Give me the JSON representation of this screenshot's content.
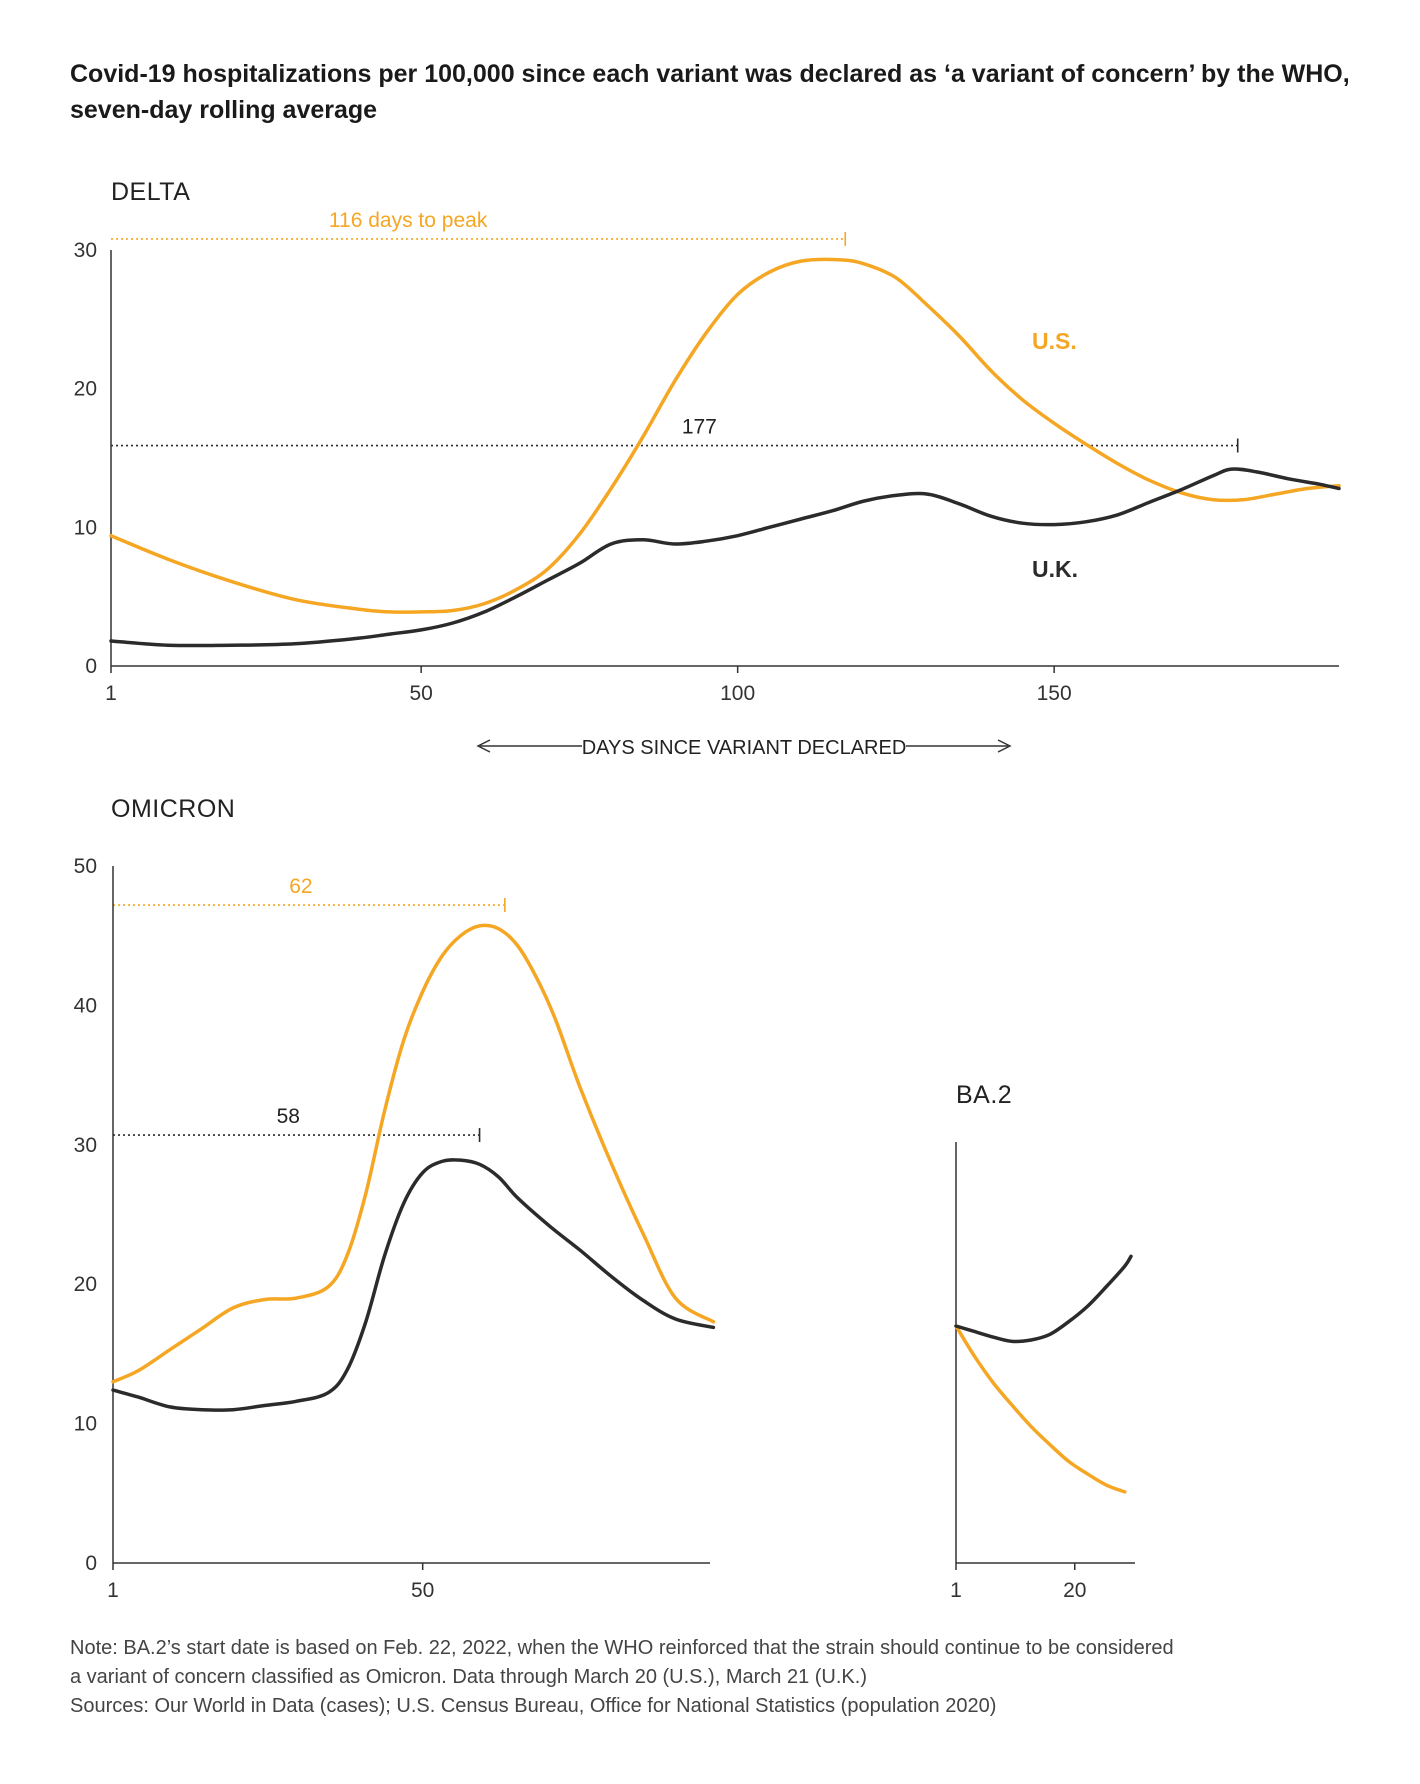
{
  "chart_data": [
    {
      "type": "line",
      "panel": "DELTA",
      "title": "Covid-19 hospitalizations per 100,000 since each variant was declared as ‘a variant of concern’ by the WHO, seven-day rolling average",
      "xlabel": "DAYS SINCE VARIANT DECLARED",
      "ylabel": "",
      "xlim": [
        1,
        195
      ],
      "ylim": [
        0,
        30
      ],
      "xticks": [
        1,
        50,
        100,
        150
      ],
      "yticks": [
        0,
        10,
        20,
        30
      ],
      "series": [
        {
          "name": "U.S.",
          "color": "#f5a623",
          "x": [
            1,
            10,
            20,
            30,
            40,
            45,
            50,
            55,
            60,
            65,
            70,
            75,
            80,
            85,
            90,
            95,
            100,
            105,
            110,
            116,
            120,
            125,
            130,
            135,
            140,
            145,
            150,
            155,
            160,
            165,
            170,
            175,
            180,
            185,
            190,
            195
          ],
          "y": [
            9.4,
            7.7,
            6.1,
            4.8,
            4.1,
            3.9,
            3.9,
            4.0,
            4.5,
            5.5,
            7.0,
            9.5,
            12.8,
            16.5,
            20.5,
            24.0,
            26.8,
            28.4,
            29.2,
            29.3,
            29.0,
            28.0,
            26.0,
            23.8,
            21.3,
            19.2,
            17.5,
            16.0,
            14.6,
            13.4,
            12.5,
            12.0,
            12.0,
            12.4,
            12.8,
            13.0
          ]
        },
        {
          "name": "U.K.",
          "color": "#2b2b2b",
          "x": [
            1,
            10,
            20,
            30,
            40,
            45,
            50,
            55,
            60,
            65,
            70,
            75,
            80,
            85,
            90,
            95,
            100,
            105,
            110,
            115,
            120,
            125,
            130,
            135,
            140,
            145,
            150,
            155,
            160,
            165,
            170,
            175,
            178,
            182,
            187,
            192,
            195
          ],
          "y": [
            1.8,
            1.5,
            1.5,
            1.6,
            2.0,
            2.3,
            2.6,
            3.1,
            3.9,
            5.0,
            6.2,
            7.4,
            8.8,
            9.1,
            8.8,
            9.0,
            9.4,
            10.0,
            10.6,
            11.2,
            11.9,
            12.3,
            12.4,
            11.7,
            10.8,
            10.3,
            10.2,
            10.4,
            10.9,
            11.8,
            12.7,
            13.7,
            14.2,
            14.0,
            13.5,
            13.1,
            12.8
          ]
        }
      ],
      "annotations": [
        {
          "text": "116 days to peak",
          "series": "U.S.",
          "x_start": 1,
          "x_end": 117,
          "y": 30.8
        },
        {
          "text": "177",
          "series": "U.K.",
          "x_start": 1,
          "x_end": 179,
          "y": 15.9
        }
      ]
    },
    {
      "type": "line",
      "panel": "OMICRON",
      "xlabel": "",
      "ylabel": "",
      "xlim": [
        1,
        96
      ],
      "ylim": [
        0,
        50
      ],
      "xticks": [
        1,
        50
      ],
      "yticks": [
        0,
        10,
        20,
        30,
        40,
        50
      ],
      "series": [
        {
          "name": "U.S.",
          "color": "#f5a623",
          "x": [
            1,
            5,
            10,
            15,
            20,
            25,
            30,
            35,
            38,
            41,
            44,
            47,
            50,
            53,
            56,
            59,
            62,
            65,
            68,
            71,
            75,
            80,
            85,
            90,
            96
          ],
          "y": [
            13.0,
            13.8,
            15.3,
            16.8,
            18.3,
            18.9,
            19.0,
            19.8,
            22.0,
            26.5,
            32.5,
            37.5,
            41.0,
            43.5,
            45.0,
            45.7,
            45.5,
            44.3,
            42.0,
            39.0,
            34.0,
            28.5,
            23.5,
            19.0,
            17.3
          ]
        },
        {
          "name": "U.K.",
          "color": "#2b2b2b",
          "x": [
            1,
            5,
            10,
            15,
            20,
            25,
            30,
            35,
            38,
            41,
            44,
            47,
            50,
            53,
            56,
            59,
            62,
            65,
            70,
            75,
            80,
            85,
            90,
            96
          ],
          "y": [
            12.4,
            11.9,
            11.2,
            11.0,
            11.0,
            11.3,
            11.6,
            12.2,
            13.8,
            17.3,
            22.1,
            25.8,
            28.0,
            28.8,
            28.9,
            28.6,
            27.7,
            26.2,
            24.2,
            22.4,
            20.5,
            18.8,
            17.5,
            16.9
          ]
        }
      ],
      "annotations": [
        {
          "text": "62",
          "series": "U.S.",
          "x_start": 1,
          "x_end": 63,
          "y": 47.2
        },
        {
          "text": "58",
          "series": "U.K.",
          "x_start": 1,
          "x_end": 59,
          "y": 30.7
        }
      ]
    },
    {
      "type": "line",
      "panel": "BA.2",
      "xlabel": "",
      "ylabel": "",
      "xlim": [
        1,
        30
      ],
      "ylim": [
        0,
        50
      ],
      "xticks": [
        1,
        20
      ],
      "yticks": [],
      "series": [
        {
          "name": "U.S.",
          "color": "#f5a623",
          "x": [
            1,
            4,
            7,
            10,
            13,
            16,
            19,
            22,
            25,
            28
          ],
          "y": [
            17.0,
            14.8,
            12.9,
            11.3,
            9.8,
            8.5,
            7.3,
            6.4,
            5.6,
            5.1
          ]
        },
        {
          "name": "U.K.",
          "color": "#2b2b2b",
          "x": [
            1,
            4,
            7,
            10,
            13,
            16,
            19,
            22,
            25,
            28,
            29
          ],
          "y": [
            17.0,
            16.6,
            16.2,
            15.9,
            16.0,
            16.4,
            17.3,
            18.4,
            19.8,
            21.3,
            22.0
          ]
        }
      ],
      "annotations": []
    }
  ],
  "labels": {
    "delta": "DELTA",
    "omicron": "OMICRON",
    "ba2": "BA.2",
    "us": "U.S.",
    "uk": "U.K."
  },
  "notes": {
    "note_line1": "Note: BA.2’s start date is based on Feb. 22, 2022, when the WHO reinforced that the strain should continue to be considered",
    "note_line2": "a variant of concern classified as Omicron. Data through March 20 (U.S.), March 21 (U.K.)",
    "sources": "Sources: Our World in Data (cases); U.S. Census Bureau, Office for National Statistics (population 2020)"
  },
  "colors": {
    "us": "#f5a623",
    "uk": "#2b2b2b",
    "axis": "#333333"
  }
}
